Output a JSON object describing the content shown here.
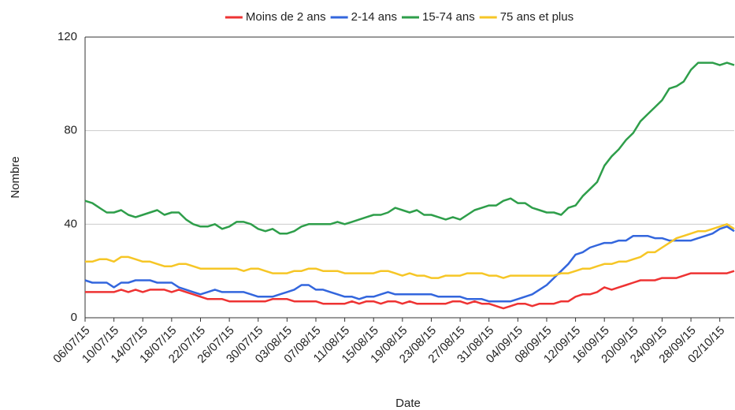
{
  "chart_data": {
    "type": "line",
    "x_label": "Date",
    "y_label": "Nombre",
    "categories": [
      "06/07/15",
      null,
      null,
      null,
      "10/07/15",
      null,
      null,
      null,
      "14/07/15",
      null,
      null,
      null,
      "18/07/15",
      null,
      null,
      null,
      "22/07/15",
      null,
      null,
      null,
      "26/07/15",
      null,
      null,
      null,
      "30/07/15",
      null,
      null,
      null,
      "03/08/15",
      null,
      null,
      null,
      "07/08/15",
      null,
      null,
      null,
      "11/08/15",
      null,
      null,
      null,
      "15/08/15",
      null,
      null,
      null,
      "19/08/15",
      null,
      null,
      null,
      "23/08/15",
      null,
      null,
      null,
      "27/08/15",
      null,
      null,
      null,
      "31/08/15",
      null,
      null,
      null,
      "04/09/15",
      null,
      null,
      null,
      "08/09/15",
      null,
      null,
      null,
      "12/09/15",
      null,
      null,
      null,
      "16/09/15",
      null,
      null,
      null,
      "20/09/15",
      null,
      null,
      null,
      "24/09/15",
      null,
      null,
      null,
      "28/09/15",
      null,
      null,
      null,
      "02/10/15",
      null,
      null
    ],
    "series": [
      {
        "name": "Moins de 2 ans",
        "color": "#ee3333",
        "values": [
          11,
          11,
          11,
          11,
          11,
          12,
          11,
          12,
          11,
          12,
          12,
          12,
          11,
          12,
          11,
          10,
          9,
          8,
          8,
          8,
          7,
          7,
          7,
          7,
          7,
          7,
          8,
          8,
          8,
          7,
          7,
          7,
          7,
          6,
          6,
          6,
          6,
          7,
          6,
          7,
          7,
          6,
          7,
          7,
          6,
          7,
          6,
          6,
          6,
          6,
          6,
          7,
          7,
          6,
          7,
          6,
          6,
          5,
          4,
          5,
          6,
          6,
          5,
          6,
          6,
          6,
          7,
          7,
          9,
          10,
          10,
          11,
          13,
          12,
          13,
          14,
          15,
          16,
          16,
          16,
          17,
          17,
          17,
          18,
          19,
          19,
          19,
          19,
          19,
          19,
          20
        ]
      },
      {
        "name": "2-14 ans",
        "color": "#3366dd",
        "values": [
          16,
          15,
          15,
          15,
          13,
          15,
          15,
          16,
          16,
          16,
          15,
          15,
          15,
          13,
          12,
          11,
          10,
          11,
          12,
          11,
          11,
          11,
          11,
          10,
          9,
          9,
          9,
          10,
          11,
          12,
          14,
          14,
          12,
          12,
          11,
          10,
          9,
          9,
          8,
          9,
          9,
          10,
          11,
          10,
          10,
          10,
          10,
          10,
          10,
          9,
          9,
          9,
          9,
          8,
          8,
          8,
          7,
          7,
          7,
          7,
          8,
          9,
          10,
          12,
          14,
          17,
          20,
          23,
          27,
          28,
          30,
          31,
          32,
          32,
          33,
          33,
          35,
          35,
          35,
          34,
          34,
          33,
          33,
          33,
          33,
          34,
          35,
          36,
          38,
          39,
          37
        ]
      },
      {
        "name": "15-74 ans",
        "color": "#2e9e4a",
        "values": [
          50,
          49,
          47,
          45,
          45,
          46,
          44,
          43,
          44,
          45,
          46,
          44,
          45,
          45,
          42,
          40,
          39,
          39,
          40,
          38,
          39,
          41,
          41,
          40,
          38,
          37,
          38,
          36,
          36,
          37,
          39,
          40,
          40,
          40,
          40,
          41,
          40,
          41,
          42,
          43,
          44,
          44,
          45,
          47,
          46,
          45,
          46,
          44,
          44,
          43,
          42,
          43,
          42,
          44,
          46,
          47,
          48,
          48,
          50,
          51,
          49,
          49,
          47,
          46,
          45,
          45,
          44,
          47,
          48,
          52,
          55,
          58,
          65,
          69,
          72,
          76,
          79,
          84,
          87,
          90,
          93,
          98,
          99,
          101,
          106,
          109,
          109,
          109,
          108,
          109,
          108
        ]
      },
      {
        "name": "75 ans et plus",
        "color": "#f6c626",
        "values": [
          24,
          24,
          25,
          25,
          24,
          26,
          26,
          25,
          24,
          24,
          23,
          22,
          22,
          23,
          23,
          22,
          21,
          21,
          21,
          21,
          21,
          21,
          20,
          21,
          21,
          20,
          19,
          19,
          19,
          20,
          20,
          21,
          21,
          20,
          20,
          20,
          19,
          19,
          19,
          19,
          19,
          20,
          20,
          19,
          18,
          19,
          18,
          18,
          17,
          17,
          18,
          18,
          18,
          19,
          19,
          19,
          18,
          18,
          17,
          18,
          18,
          18,
          18,
          18,
          18,
          18,
          19,
          19,
          20,
          21,
          21,
          22,
          23,
          23,
          24,
          24,
          25,
          26,
          28,
          28,
          30,
          32,
          34,
          35,
          36,
          37,
          37,
          38,
          39,
          40,
          38
        ]
      }
    ],
    "ylim": [
      0,
      120
    ],
    "yticks": [
      0,
      40,
      80,
      120
    ],
    "grid": true,
    "legend": "top"
  }
}
